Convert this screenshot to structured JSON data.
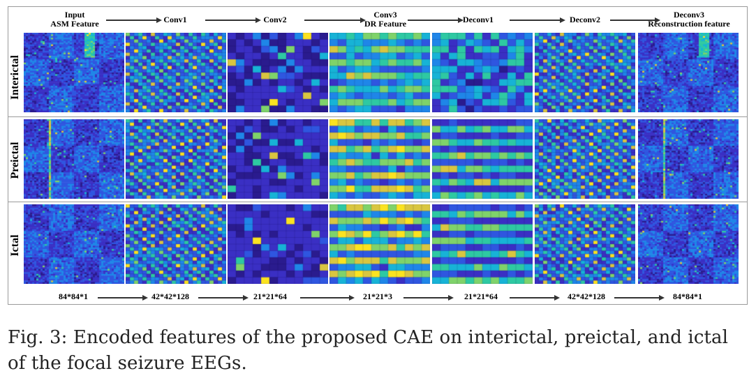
{
  "stages": [
    {
      "key": "input",
      "label_line1": "Input",
      "label_line2": "ASM Feature",
      "grid": 48,
      "type": "asm"
    },
    {
      "key": "conv1",
      "label_line1": "Conv1",
      "label_line2": "",
      "grid": 24,
      "type": "diag"
    },
    {
      "key": "conv2",
      "label_line1": "Conv2",
      "label_line2": "",
      "grid": 12,
      "type": "sparse"
    },
    {
      "key": "conv3",
      "label_line1": "Conv3",
      "label_line2": "DR Feature",
      "grid": 12,
      "type": "stripe"
    },
    {
      "key": "deconv1",
      "label_line1": "Deconv1",
      "label_line2": "",
      "grid": 12,
      "type": "stripe2"
    },
    {
      "key": "deconv2",
      "label_line1": "Deconv2",
      "label_line2": "",
      "grid": 24,
      "type": "diag"
    },
    {
      "key": "deconv3",
      "label_line1": "Deconv3",
      "label_line2": "Reconstruction feature",
      "grid": 48,
      "type": "asm"
    }
  ],
  "rows": [
    {
      "key": "interictal",
      "label": "Interictal"
    },
    {
      "key": "preictal",
      "label": "Preictal"
    },
    {
      "key": "ictal",
      "label": "Ictal"
    }
  ],
  "dimensions": [
    "84*84*1",
    "42*42*128",
    "21*21*64",
    "21*21*3",
    "21*21*64",
    "42*42*128",
    "84*84*1"
  ],
  "caption": "Fig. 3: Encoded features of the proposed CAE on interictal, preictal, and ictal of the focal seizure EEGs.",
  "colors": {
    "palette": [
      "#2a1b8e",
      "#3a2fc4",
      "#2f56e0",
      "#1f86e8",
      "#17b3d6",
      "#2ec9a2",
      "#7fd36a",
      "#d9c640",
      "#fbe320"
    ],
    "arrow": "#333333",
    "border": "#9a9a9a"
  }
}
